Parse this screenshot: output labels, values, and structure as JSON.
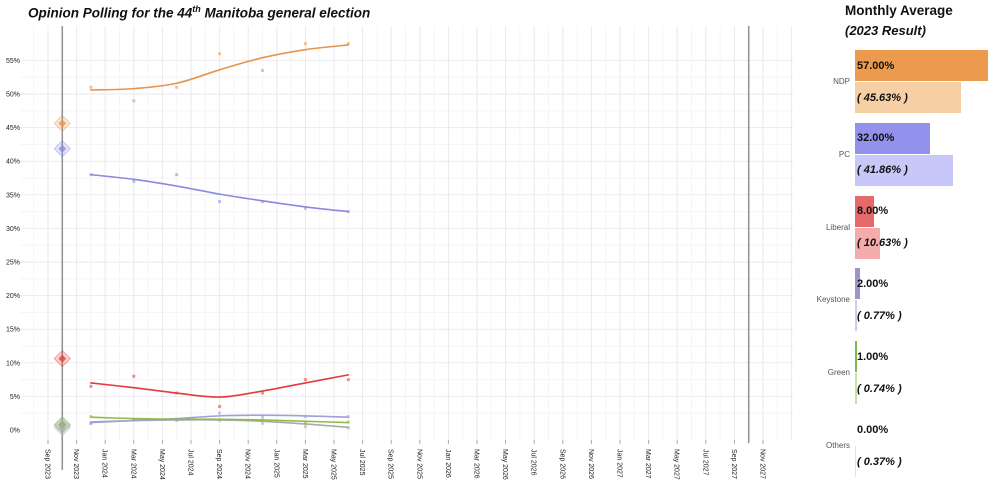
{
  "title": {
    "prefix": "Opinion Polling for the 44",
    "sup": "th",
    "suffix": " Manitoba general election"
  },
  "chart_data": {
    "type": "line+scatter",
    "title": "Opinion Polling for the 44th Manitoba general election",
    "x_ticks": [
      "Sep 2023",
      "Nov 2023",
      "Jan 2024",
      "Mar 2024",
      "May 2024",
      "Jul 2024",
      "Sep 2024",
      "Nov 2024",
      "Jan 2025",
      "Mar 2025",
      "May 2025",
      "Jul 2025",
      "Sep 2025",
      "Nov 2025",
      "Jan 2026",
      "Mar 2026",
      "May 2026",
      "Jul 2026",
      "Sep 2026",
      "Nov 2026",
      "Jan 2027",
      "Mar 2027",
      "May 2027",
      "Jul 2027",
      "Sep 2027",
      "Nov 2027"
    ],
    "y_ticks": [
      "0%",
      "5%",
      "10%",
      "15%",
      "20%",
      "25%",
      "30%",
      "35%",
      "40%",
      "45%",
      "50%",
      "55%"
    ],
    "ylim": [
      0,
      58
    ],
    "grid": true,
    "poll_dates": [
      "Dec 2023",
      "Mar 2024",
      "Jun 2024",
      "Sep 2024",
      "Dec 2024",
      "Mar 2025",
      "Jun 2025"
    ],
    "series": [
      {
        "name": "NDP",
        "color": "#e8944a",
        "polls": [
          51,
          49,
          51,
          56,
          53.5,
          57.5,
          57.5
        ],
        "trend": [
          50.6,
          50.8,
          51.6,
          53.6,
          55.4,
          56.6,
          57.3
        ]
      },
      {
        "name": "PC",
        "color": "#8a8ade",
        "polls": [
          38,
          37,
          38,
          34,
          34,
          33,
          32.5
        ],
        "trend": [
          38,
          37.3,
          36.3,
          35.1,
          34.1,
          33.2,
          32.5
        ]
      },
      {
        "name": "Liberal",
        "color": "#e23b3b",
        "polls": [
          6.5,
          8,
          5.5,
          3.5,
          5.5,
          7.5,
          7.5
        ],
        "trend": [
          7,
          6.3,
          5.5,
          4.9,
          5.8,
          7,
          8.2
        ]
      },
      {
        "name": "Green",
        "color": "#8fbc45",
        "polls": [
          2,
          1.5,
          1.5,
          1.5,
          1.5,
          1,
          1.2
        ],
        "trend": [
          1.9,
          1.7,
          1.6,
          1.6,
          1.5,
          1.3,
          1.1
        ]
      },
      {
        "name": "Keystone",
        "color": "#a29fd6",
        "polls": [
          1,
          1.5,
          1.5,
          2.5,
          2,
          2,
          2
        ],
        "trend": [
          1.1,
          1.4,
          1.7,
          2.1,
          2.2,
          2.1,
          1.9
        ]
      },
      {
        "name": "Others",
        "color": "#aaaaaa",
        "polls": [
          1,
          1.5,
          1.5,
          1.5,
          1,
          0.5,
          0.3
        ],
        "trend": [
          1.2,
          1.4,
          1.5,
          1.5,
          1.3,
          0.9,
          0.4
        ]
      }
    ],
    "election_2023": {
      "date": "Oct 2023",
      "results": [
        {
          "party": "NDP",
          "value": 45.63
        },
        {
          "party": "PC",
          "value": 41.86
        },
        {
          "party": "Liberal",
          "value": 10.63
        },
        {
          "party": "Keystone",
          "value": 0.77
        },
        {
          "party": "Green",
          "value": 0.74
        },
        {
          "party": "Others",
          "value": 0.37
        }
      ]
    },
    "next_election_line": {
      "date": "Oct 2027"
    }
  },
  "right_panel": {
    "title": "Monthly Average",
    "subtitle": "(2023 Result)",
    "rows": [
      {
        "party": "NDP",
        "avg_label": "57.00%",
        "result_label": "( 45.63% )",
        "avg": 57.0,
        "result": 45.63,
        "color": "#ec9a4e",
        "color_light": "#f7cfa5"
      },
      {
        "party": "PC",
        "avg_label": "32.00%",
        "result_label": "( 41.86% )",
        "avg": 32.0,
        "result": 41.86,
        "color": "#9292ec",
        "color_light": "#c8c8f8"
      },
      {
        "party": "Liberal",
        "avg_label": "8.00%",
        "result_label": "( 10.63% )",
        "avg": 8.0,
        "result": 10.63,
        "color": "#e76a6a",
        "color_light": "#f4abab"
      },
      {
        "party": "Keystone",
        "avg_label": "2.00%",
        "result_label": "( 0.77% )",
        "avg": 2.0,
        "result": 0.77,
        "color": "#9a96cb",
        "color_light": "#cecce8"
      },
      {
        "party": "Green",
        "avg_label": "1.00%",
        "result_label": "( 0.74% )",
        "avg": 1.0,
        "result": 0.74,
        "color": "#7cb947",
        "color_light": "#c9e0ab"
      },
      {
        "party": "Others",
        "avg_label": "0.00%",
        "result_label": "( 0.37% )",
        "avg": 0.0,
        "result": 0.37,
        "color": "#bbbbbb",
        "color_light": "#e3e3e3"
      }
    ]
  }
}
